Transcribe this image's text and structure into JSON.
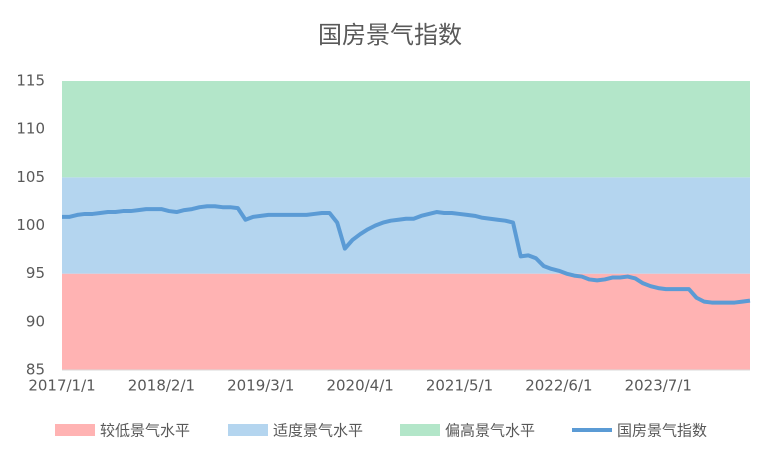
{
  "chart_data": {
    "type": "line",
    "title": "国房景气指数",
    "categories": [
      "2017/1/1",
      null,
      null,
      null,
      null,
      null,
      null,
      null,
      null,
      null,
      null,
      null,
      null,
      "2018/2/1",
      null,
      null,
      null,
      null,
      null,
      null,
      null,
      null,
      null,
      null,
      null,
      null,
      "2019/3/1",
      null,
      null,
      null,
      null,
      null,
      null,
      null,
      null,
      null,
      null,
      null,
      null,
      "2020/4/1",
      null,
      null,
      null,
      null,
      null,
      null,
      null,
      null,
      null,
      null,
      null,
      null,
      "2021/5/1",
      null,
      null,
      null,
      null,
      null,
      null,
      null,
      null,
      null,
      null,
      null,
      null,
      "2022/6/1",
      null,
      null,
      null,
      null,
      null,
      null,
      null,
      null,
      null,
      null,
      null,
      null,
      "2023/7/1",
      null,
      null,
      null,
      null,
      null,
      null,
      null,
      null,
      null,
      null,
      null,
      null
    ],
    "bands": [
      {
        "name": "较低景气水平",
        "color": "#ffb3b3",
        "value": 95
      },
      {
        "name": "适度景气水平",
        "color": "#b4d5ef",
        "value": 10
      },
      {
        "name": "偏高景气水平",
        "color": "#b3e6c9",
        "value": 10
      }
    ],
    "series": [
      {
        "name": "国房景气指数",
        "color": "#5b9bd5",
        "values": [
          100.9,
          100.9,
          101.1,
          101.2,
          101.2,
          101.3,
          101.4,
          101.4,
          101.5,
          101.5,
          101.6,
          101.7,
          101.7,
          101.7,
          101.5,
          101.4,
          101.6,
          101.7,
          101.9,
          102.0,
          102.0,
          101.9,
          101.9,
          101.8,
          100.6,
          100.9,
          101.0,
          101.1,
          101.1,
          101.1,
          101.1,
          101.1,
          101.1,
          101.2,
          101.3,
          101.3,
          100.3,
          97.6,
          98.5,
          99.1,
          99.6,
          100.0,
          100.3,
          100.5,
          100.6,
          100.7,
          100.7,
          101.0,
          101.2,
          101.4,
          101.3,
          101.3,
          101.2,
          101.1,
          101.0,
          100.8,
          100.7,
          100.6,
          100.5,
          100.3,
          96.8,
          96.9,
          96.6,
          95.8,
          95.5,
          95.3,
          95.0,
          94.8,
          94.7,
          94.4,
          94.3,
          94.4,
          94.6,
          94.6,
          94.7,
          94.5,
          94.0,
          93.7,
          93.5,
          93.4,
          93.4,
          93.4,
          93.4,
          92.5,
          92.1,
          92.0,
          92.0,
          92.0,
          92.0,
          92.1,
          92.2
        ]
      }
    ],
    "ylim": [
      85,
      115
    ],
    "yticks": [
      85,
      90,
      95,
      100,
      105,
      110,
      115
    ]
  }
}
